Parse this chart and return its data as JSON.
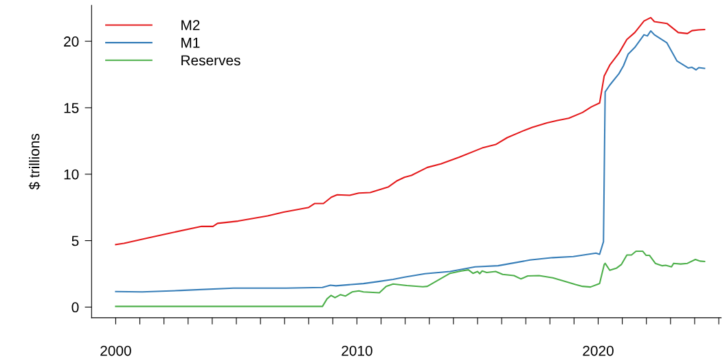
{
  "chart_data": {
    "type": "line",
    "ylabel": "$ trillions",
    "xlim": [
      1999.0,
      2025.1
    ],
    "ylim": [
      -0.8,
      22.7
    ],
    "xticks": [
      2000,
      {
        "value": 2001,
        "label": null
      },
      {
        "value": 2002,
        "label": null
      },
      {
        "value": 2003,
        "label": null
      },
      {
        "value": 2004,
        "label": null
      },
      {
        "value": 2005,
        "label": null
      },
      {
        "value": 2006,
        "label": null
      },
      {
        "value": 2007,
        "label": null
      },
      {
        "value": 2008,
        "label": null
      },
      {
        "value": 2009,
        "label": null
      },
      2010,
      {
        "value": 2011,
        "label": null
      },
      {
        "value": 2012,
        "label": null
      },
      {
        "value": 2013,
        "label": null
      },
      {
        "value": 2014,
        "label": null
      },
      {
        "value": 2015,
        "label": null
      },
      {
        "value": 2016,
        "label": null
      },
      {
        "value": 2017,
        "label": null
      },
      {
        "value": 2018,
        "label": null
      },
      {
        "value": 2019,
        "label": null
      },
      2020,
      {
        "value": 2021,
        "label": null
      },
      {
        "value": 2022,
        "label": null
      },
      {
        "value": 2023,
        "label": null
      },
      {
        "value": 2024,
        "label": null
      },
      {
        "value": 2025,
        "label": null
      }
    ],
    "yticks": [
      0,
      5,
      10,
      15,
      20
    ],
    "grid": false,
    "legend": "top left",
    "marker": "none",
    "line_style": "solid",
    "series": [
      {
        "name": "M2",
        "color": "#e41a1c",
        "x": [
          2000.0,
          2000.34,
          2001.29,
          2002.23,
          2003.56,
          2004.03,
          2004.22,
          2005.07,
          2006.3,
          2006.96,
          2008.0,
          2008.24,
          2008.61,
          2008.94,
          2009.18,
          2009.7,
          2010.08,
          2010.55,
          2011.31,
          2011.64,
          2011.97,
          2012.26,
          2012.92,
          2013.48,
          2014.24,
          2015.19,
          2015.75,
          2016.23,
          2016.89,
          2017.27,
          2017.88,
          2018.31,
          2018.78,
          2019.35,
          2019.72,
          2020.06,
          2020.25,
          2020.48,
          2020.86,
          2021.19,
          2021.52,
          2021.9,
          2022.18,
          2022.33,
          2022.85,
          2023.32,
          2023.7,
          2023.89,
          2024.17,
          2024.41
        ],
        "values": [
          4.7,
          4.8,
          5.18,
          5.56,
          6.07,
          6.07,
          6.3,
          6.47,
          6.86,
          7.15,
          7.5,
          7.79,
          7.79,
          8.27,
          8.45,
          8.41,
          8.58,
          8.62,
          9.05,
          9.48,
          9.77,
          9.91,
          10.51,
          10.77,
          11.28,
          11.97,
          12.23,
          12.75,
          13.26,
          13.52,
          13.86,
          14.04,
          14.21,
          14.64,
          15.07,
          15.36,
          17.39,
          18.2,
          19.11,
          20.14,
          20.66,
          21.52,
          21.78,
          21.48,
          21.34,
          20.66,
          20.58,
          20.8,
          20.86,
          20.88
        ]
      },
      {
        "name": "M1",
        "color": "#377eb8",
        "x": [
          2000.0,
          2001.1,
          2002.7,
          2004.88,
          2007.06,
          2008.57,
          2008.9,
          2009.13,
          2010.27,
          2010.84,
          2011.5,
          2011.97,
          2012.82,
          2013.86,
          2014.9,
          2015.85,
          2017.17,
          2018.12,
          2018.97,
          2019.91,
          2020.06,
          2020.22,
          2020.29,
          2020.48,
          2020.86,
          2021.05,
          2021.24,
          2021.52,
          2021.9,
          2022.04,
          2022.18,
          2022.33,
          2022.85,
          2023.27,
          2023.74,
          2023.89,
          2024.06,
          2024.17,
          2024.41
        ],
        "values": [
          1.17,
          1.14,
          1.25,
          1.43,
          1.43,
          1.48,
          1.65,
          1.6,
          1.77,
          1.91,
          2.08,
          2.25,
          2.51,
          2.68,
          3.03,
          3.11,
          3.54,
          3.72,
          3.8,
          4.06,
          3.97,
          4.92,
          16.19,
          16.7,
          17.56,
          18.16,
          19.02,
          19.54,
          20.49,
          20.4,
          20.78,
          20.49,
          19.88,
          18.51,
          17.99,
          18.04,
          17.85,
          18.02,
          17.96
        ]
      },
      {
        "name": "Reserves",
        "color": "#4daf4a",
        "x": [
          2000.0,
          2008.57,
          2008.76,
          2008.93,
          2009.09,
          2009.31,
          2009.52,
          2009.8,
          2010.08,
          2010.27,
          2010.93,
          2011.21,
          2011.5,
          2012.07,
          2012.73,
          2012.92,
          2013.86,
          2014.33,
          2014.62,
          2014.81,
          2015.0,
          2015.09,
          2015.19,
          2015.38,
          2015.75,
          2016.04,
          2016.51,
          2016.8,
          2017.08,
          2017.55,
          2018.12,
          2018.68,
          2019.06,
          2019.35,
          2019.68,
          2020.01,
          2020.06,
          2020.25,
          2020.29,
          2020.48,
          2020.77,
          2020.96,
          2021.19,
          2021.38,
          2021.57,
          2021.85,
          2021.99,
          2022.13,
          2022.37,
          2022.66,
          2022.8,
          2023.04,
          2023.13,
          2023.42,
          2023.7,
          2024.03,
          2024.22,
          2024.41
        ],
        "values": [
          0.05,
          0.05,
          0.62,
          0.88,
          0.71,
          0.93,
          0.83,
          1.14,
          1.22,
          1.14,
          1.08,
          1.56,
          1.74,
          1.62,
          1.53,
          1.56,
          2.54,
          2.72,
          2.8,
          2.54,
          2.68,
          2.51,
          2.72,
          2.6,
          2.68,
          2.46,
          2.37,
          2.12,
          2.34,
          2.37,
          2.2,
          1.91,
          1.7,
          1.56,
          1.51,
          1.74,
          1.77,
          3.2,
          3.29,
          2.77,
          2.94,
          3.2,
          3.92,
          3.92,
          4.2,
          4.2,
          3.89,
          3.89,
          3.29,
          3.11,
          3.14,
          3.03,
          3.29,
          3.24,
          3.29,
          3.58,
          3.46,
          3.43
        ]
      }
    ]
  }
}
